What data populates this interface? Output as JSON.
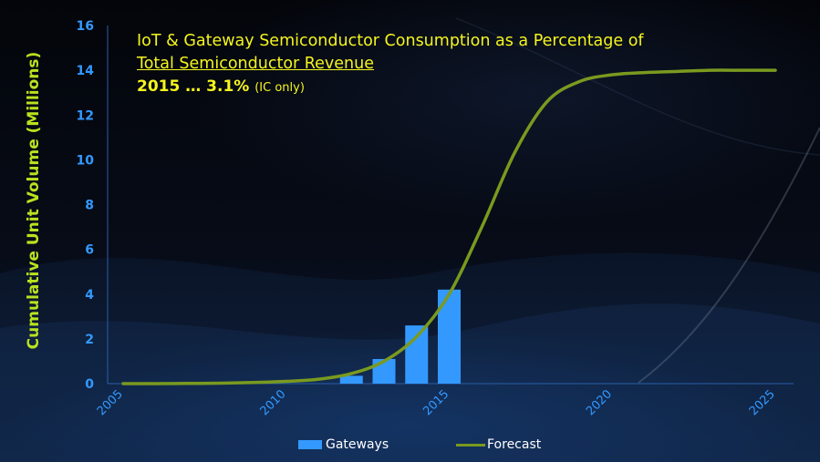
{
  "title": {
    "line1": "IoT & Gateway Semiconductor Consumption as a Percentage of",
    "line2": "Total Semiconductor Revenue",
    "line3_main": "2015 … 3.1%",
    "line3_note": "(IC only)"
  },
  "colors": {
    "title": "#f5f51e",
    "ylabel": "#b9e21f",
    "ticks": "#3399ff",
    "bars": "#3399ff",
    "forecast_line": "#7a9a1f",
    "axis": "#2a5ea8",
    "legend_text": "#ffffff"
  },
  "chart_data": {
    "type": "bar",
    "ylabel": "Cumulative Unit Volume (Millions)",
    "ylim": [
      0,
      16
    ],
    "yticks": [
      "0",
      "2",
      "4",
      "6",
      "8",
      "10",
      "12",
      "14",
      "16"
    ],
    "xlim": [
      2005,
      2025
    ],
    "xticks": [
      "2005",
      "2010",
      "2015",
      "2020",
      "2025"
    ],
    "grid": false,
    "legend_position": "bottom",
    "series": [
      {
        "name": "Gateways",
        "type": "bar",
        "x": [
          2012,
          2013,
          2014,
          2015
        ],
        "values": [
          0.35,
          1.1,
          2.6,
          4.2
        ]
      },
      {
        "name": "Forecast",
        "type": "line",
        "x": [
          2005,
          2006,
          2007,
          2008,
          2009,
          2010,
          2011,
          2012,
          2013,
          2014,
          2015,
          2016,
          2017,
          2018,
          2019,
          2020,
          2021,
          2022,
          2023,
          2024,
          2025
        ],
        "values": [
          0,
          0,
          0.01,
          0.02,
          0.05,
          0.1,
          0.2,
          0.45,
          1.0,
          2.1,
          4.0,
          7.0,
          10.3,
          12.6,
          13.5,
          13.8,
          13.9,
          13.95,
          14.0,
          14.0,
          14.0
        ]
      }
    ]
  }
}
